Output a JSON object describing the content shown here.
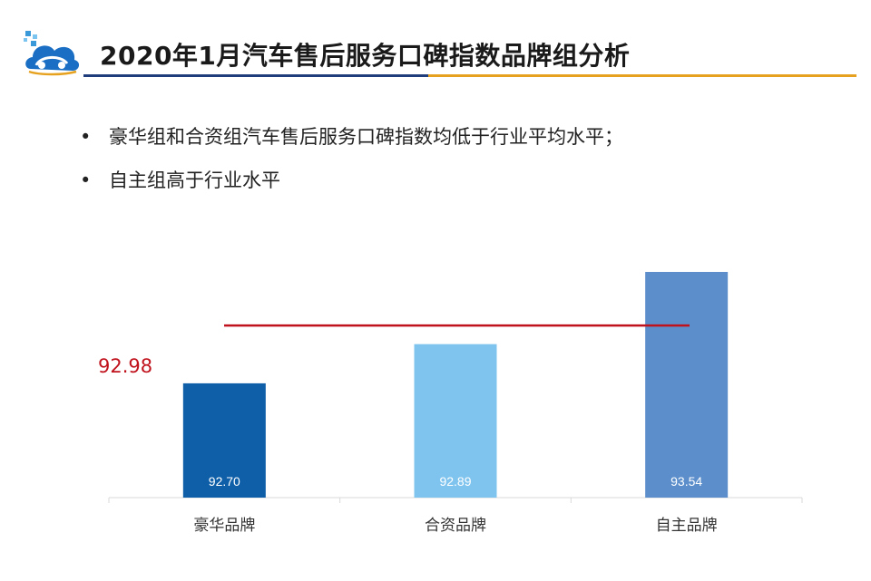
{
  "header": {
    "title": "2020年1月汽车售后服务口碑指数品牌组分析",
    "logo_icon": "car-cloud-logo-icon"
  },
  "bullets": [
    {
      "marker": "•",
      "text": "豪华组和合资组汽车售后服务口碑指数均低于行业平均水平；"
    },
    {
      "marker": "•",
      "text": "自主组高于行业水平"
    }
  ],
  "average": {
    "label": "92.98",
    "value": 92.98,
    "color": "#c0121c"
  },
  "chart_data": {
    "type": "bar",
    "categories": [
      "豪华品牌",
      "合资品牌",
      "自主品牌"
    ],
    "values": [
      92.7,
      92.89,
      93.54
    ],
    "value_labels": [
      "92.70",
      "92.89",
      "93.54"
    ],
    "colors": [
      "#0e5ea8",
      "#7fc4ee",
      "#5b8ecb"
    ],
    "reference_line": 92.98,
    "title": "",
    "xlabel": "",
    "ylabel": "",
    "grid": false,
    "legend": "none"
  }
}
